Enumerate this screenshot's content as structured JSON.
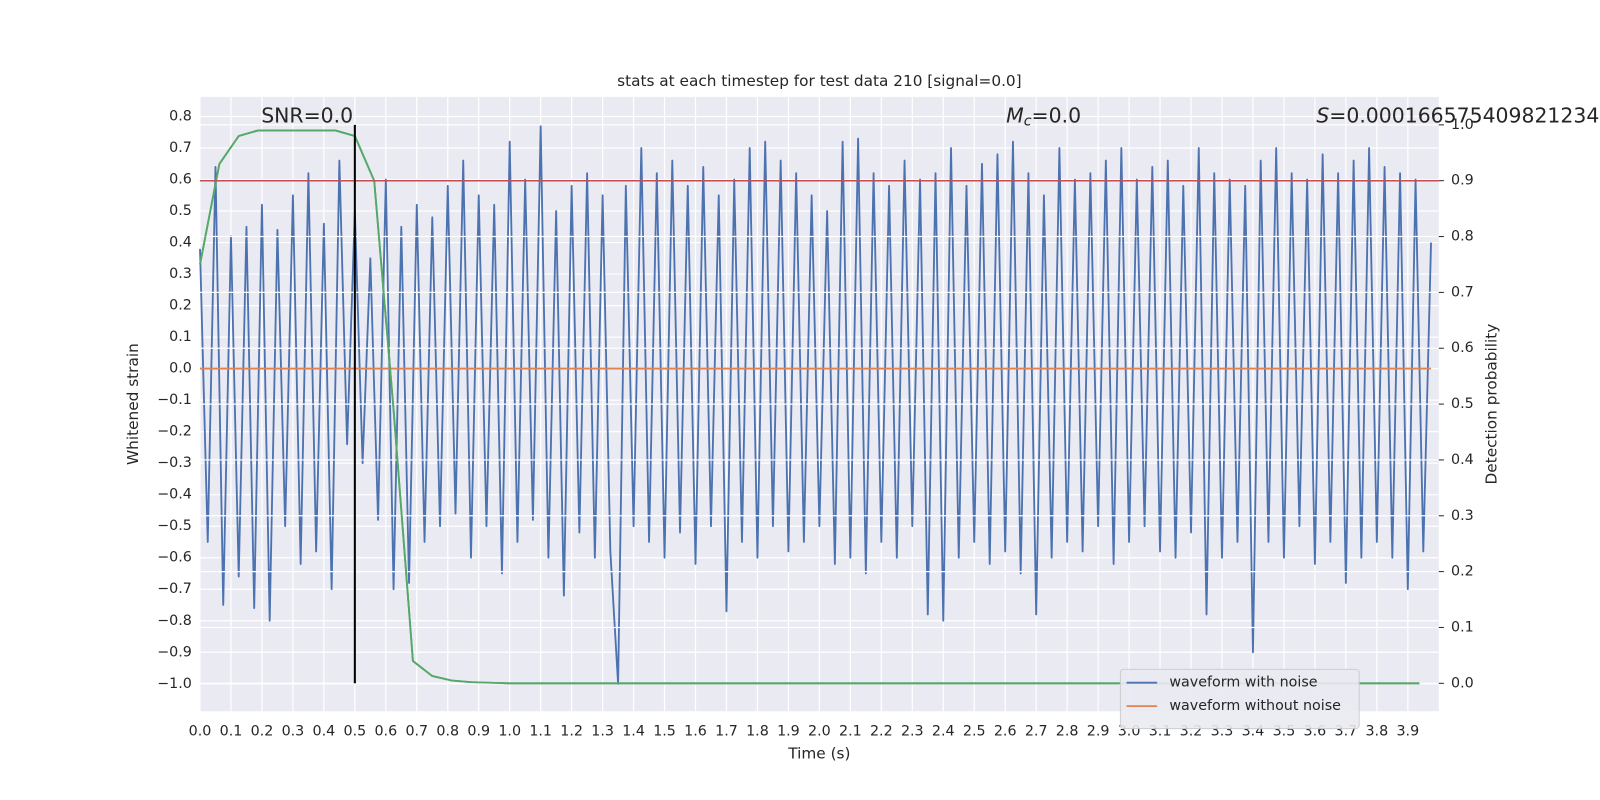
{
  "chart_data": {
    "type": "line",
    "title": "stats at each timestep for test data 210 [signal=0.0]",
    "x_label": "Time (s)",
    "y_label": "Whitened strain",
    "y2_label": "Detection probability",
    "grid": true,
    "background": "#eaeaf2",
    "legend": "lower right",
    "xlim": [
      0,
      4.0
    ],
    "ylim": [
      -1.087,
      0.862
    ],
    "y2lim": [
      -0.05,
      1.05
    ],
    "xticks": [
      {
        "value": 0,
        "label": "0.0"
      },
      0.1,
      0.2,
      0.3,
      0.4,
      0.5,
      0.6,
      0.7,
      0.8,
      0.9,
      {
        "value": 1,
        "label": "1.0"
      },
      1.1,
      1.2,
      1.3,
      1.4,
      1.5,
      1.6,
      1.7,
      1.8,
      1.9,
      {
        "value": 2,
        "label": "2.0"
      },
      2.1,
      2.2,
      2.3,
      2.4,
      2.5,
      2.6,
      2.7,
      2.8,
      2.9,
      {
        "value": 3,
        "label": "3.0"
      },
      3.1,
      3.2,
      3.3,
      3.4,
      3.5,
      3.6,
      3.7,
      3.8,
      3.9
    ],
    "yticks": [
      0.8,
      0.7,
      0.6,
      0.5,
      0.4,
      0.3,
      0.2,
      0.1,
      {
        "value": 0,
        "label": "0.0"
      },
      {
        "value": -0.1,
        "label": "−0.1"
      },
      {
        "value": -0.2,
        "label": "−0.2"
      },
      {
        "value": -0.3,
        "label": "−0.3"
      },
      {
        "value": -0.4,
        "label": "−0.4"
      },
      {
        "value": -0.5,
        "label": "−0.5"
      },
      {
        "value": -0.6,
        "label": "−0.6"
      },
      {
        "value": -0.7,
        "label": "−0.7"
      },
      {
        "value": -0.8,
        "label": "−0.8"
      },
      {
        "value": -0.9,
        "label": "−0.9"
      },
      {
        "value": -1,
        "label": "−1.0"
      }
    ],
    "y2ticks": [
      {
        "value": 0,
        "label": "0.0"
      },
      0.1,
      0.2,
      0.3,
      0.4,
      0.5,
      0.6,
      0.7,
      0.8,
      0.9,
      {
        "value": 1,
        "label": "1.0"
      }
    ],
    "annotations": {
      "snr": "SNR=0.0",
      "mc": {
        "symbol": "M",
        "subscript": "c",
        "text": "=0.0"
      },
      "s": {
        "symbol": "S",
        "text": "=0.000166575409821234"
      }
    },
    "series": [
      {
        "name": "waveform with noise",
        "color": "#4c72b0",
        "x": [
          0,
          0.025,
          0.05,
          0.075,
          0.1,
          0.125,
          0.15,
          0.175,
          0.2,
          0.225,
          0.25,
          0.275,
          0.3,
          0.325,
          0.35,
          0.375,
          0.4,
          0.425,
          0.45,
          0.475,
          0.5,
          0.525,
          0.55,
          0.575,
          0.6,
          0.625,
          0.65,
          0.675,
          0.7,
          0.725,
          0.75,
          0.775,
          0.8,
          0.825,
          0.85,
          0.875,
          0.9,
          0.925,
          0.95,
          0.975,
          1,
          1.025,
          1.05,
          1.075,
          1.1,
          1.125,
          1.15,
          1.175,
          1.2,
          1.225,
          1.25,
          1.275,
          1.3,
          1.325,
          1.35,
          1.375,
          1.4,
          1.425,
          1.45,
          1.475,
          1.5,
          1.525,
          1.55,
          1.575,
          1.6,
          1.625,
          1.65,
          1.675,
          1.7,
          1.725,
          1.75,
          1.775,
          1.8,
          1.825,
          1.85,
          1.875,
          1.9,
          1.925,
          1.95,
          1.975,
          2,
          2.025,
          2.05,
          2.075,
          2.1,
          2.125,
          2.15,
          2.175,
          2.2,
          2.225,
          2.25,
          2.275,
          2.3,
          2.325,
          2.35,
          2.375,
          2.4,
          2.425,
          2.45,
          2.475,
          2.5,
          2.525,
          2.55,
          2.575,
          2.6,
          2.625,
          2.65,
          2.675,
          2.7,
          2.725,
          2.75,
          2.775,
          2.8,
          2.825,
          2.85,
          2.875,
          2.9,
          2.925,
          2.95,
          2.975,
          3,
          3.025,
          3.05,
          3.075,
          3.1,
          3.125,
          3.15,
          3.175,
          3.2,
          3.225,
          3.25,
          3.275,
          3.3,
          3.325,
          3.35,
          3.375,
          3.4,
          3.425,
          3.45,
          3.475,
          3.5,
          3.525,
          3.55,
          3.575,
          3.6,
          3.625,
          3.65,
          3.675,
          3.7,
          3.725,
          3.75,
          3.775,
          3.8,
          3.825,
          3.85,
          3.875,
          3.9,
          3.925,
          3.95,
          3.975
        ],
        "values": [
          0.38,
          -0.55,
          0.64,
          -0.75,
          0.42,
          -0.66,
          0.45,
          -0.76,
          0.52,
          -0.8,
          0.44,
          -0.5,
          0.55,
          -0.62,
          0.62,
          -0.58,
          0.46,
          -0.7,
          0.66,
          -0.24,
          0.5,
          -0.3,
          0.35,
          -0.48,
          0.6,
          -0.7,
          0.45,
          -0.68,
          0.52,
          -0.55,
          0.48,
          -0.5,
          0.58,
          -0.46,
          0.66,
          -0.6,
          0.55,
          -0.5,
          0.52,
          -0.65,
          0.72,
          -0.55,
          0.6,
          -0.48,
          0.77,
          -0.6,
          0.5,
          -0.72,
          0.58,
          -0.52,
          0.62,
          -0.6,
          0.55,
          -0.58,
          -1.0,
          0.58,
          -0.5,
          0.7,
          -0.55,
          0.62,
          -0.6,
          0.66,
          -0.52,
          0.58,
          -0.62,
          0.64,
          -0.5,
          0.55,
          -0.77,
          0.6,
          -0.55,
          0.7,
          -0.6,
          0.72,
          -0.5,
          0.66,
          -0.58,
          0.62,
          -0.55,
          0.55,
          -0.5,
          0.5,
          -0.62,
          0.72,
          -0.6,
          0.73,
          -0.65,
          0.62,
          -0.55,
          0.58,
          -0.6,
          0.66,
          -0.5,
          0.6,
          -0.78,
          0.62,
          -0.8,
          0.7,
          -0.6,
          0.58,
          -0.55,
          0.65,
          -0.62,
          0.68,
          -0.58,
          0.72,
          -0.65,
          0.62,
          -0.78,
          0.55,
          -0.6,
          0.7,
          -0.55,
          0.6,
          -0.58,
          0.62,
          -0.5,
          0.66,
          -0.62,
          0.7,
          -0.55,
          0.6,
          -0.5,
          0.64,
          -0.58,
          0.66,
          -0.6,
          0.58,
          -0.52,
          0.7,
          -0.78,
          0.62,
          -0.6,
          0.6,
          -0.55,
          0.58,
          -0.9,
          0.66,
          -0.55,
          0.7,
          -0.6,
          0.62,
          -0.5,
          0.6,
          -0.62,
          0.68,
          -0.55,
          0.62,
          -0.68,
          0.66,
          -0.6,
          0.7,
          -0.55,
          0.64,
          -0.6,
          0.62,
          -0.7,
          0.6,
          -0.58,
          0.4
        ]
      },
      {
        "name": "waveform without noise",
        "color": "#dd8452",
        "x": [
          0,
          3.975
        ],
        "values": [
          0,
          0
        ]
      },
      {
        "color": "#55a868",
        "axis": "y2",
        "x": [
          0,
          0.0625,
          0.125,
          0.1875,
          0.25,
          0.3125,
          0.375,
          0.4375,
          0.5,
          0.5625,
          0.625,
          0.6875,
          0.75,
          0.8125,
          0.875,
          0.9375,
          1,
          1.0625,
          1.125,
          1.1875,
          1.25,
          1.3125,
          1.375,
          1.4375,
          1.5,
          1.5625,
          1.625,
          1.6875,
          1.75,
          1.8125,
          1.875,
          1.9375,
          2,
          2.0625,
          2.125,
          2.1875,
          2.25,
          2.3125,
          2.375,
          2.4375,
          2.5,
          2.5625,
          2.625,
          2.6875,
          2.75,
          2.8125,
          2.875,
          2.9375,
          3,
          3.0625,
          3.125,
          3.1875,
          3.25,
          3.3125,
          3.375,
          3.4375,
          3.5,
          3.5625,
          3.625,
          3.6875,
          3.75,
          3.8125,
          3.875,
          3.9375
        ],
        "values": [
          0.75,
          0.93,
          0.98,
          0.99,
          0.99,
          0.99,
          0.99,
          0.99,
          0.98,
          0.9,
          0.49,
          0.04,
          0.013,
          0.005,
          0.002,
          0.001,
          0,
          0,
          0,
          0,
          0,
          0,
          0,
          0,
          0,
          0,
          0,
          0,
          0,
          0,
          0,
          0,
          0,
          0,
          0,
          0,
          0,
          0,
          0,
          0,
          0,
          0,
          0,
          0,
          0,
          0,
          0,
          0,
          0,
          0,
          0,
          0,
          0,
          0,
          0,
          0,
          0,
          0,
          0,
          0,
          0,
          0,
          0,
          0
        ]
      }
    ],
    "hlines": [
      {
        "value": 0.9,
        "axis": "y2",
        "color": "#c44e52"
      }
    ],
    "vlines": [
      {
        "x": 0.5,
        "axis": "y2",
        "ymin": 0,
        "ymax": 1,
        "color": "#000000"
      }
    ]
  }
}
